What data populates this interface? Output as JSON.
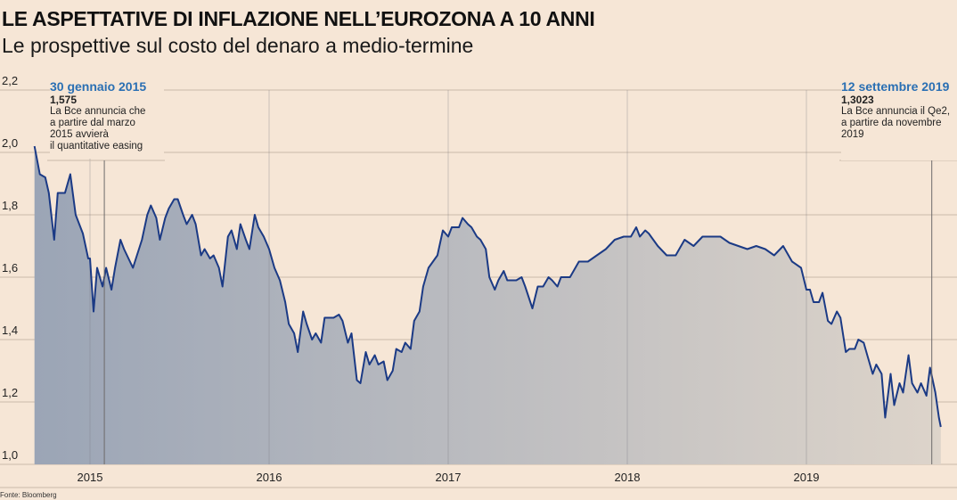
{
  "title": "LE ASPETTATIVE DI INFLAZIONE NELL’EUROZONA A 10 ANNI",
  "subtitle": "Le prospettive sul costo del denaro a medio-termine",
  "source": "Fonte: Bloomberg",
  "colors": {
    "background": "#f6e6d6",
    "line": "#1b3a85",
    "fill_left": "#9ba5b6",
    "fill_right": "#ddd4ca",
    "annotation_date": "#2a6fb3",
    "grid": "#c9b9a9"
  },
  "annotations": [
    {
      "date_label": "30 gennaio 2015",
      "value": "1,575",
      "lines": [
        "La Bce annuncia che",
        "a partire dal marzo",
        "2015 avvierà",
        "il quantitative easing"
      ],
      "x": 2015.08
    },
    {
      "date_label": "12 settembre 2019",
      "value": "1,3023",
      "lines": [
        "La Bce annuncia il Qe2,",
        "a partire da novembre",
        "2019"
      ],
      "x": 2019.7
    }
  ],
  "chart_data": {
    "type": "area",
    "title": "LE ASPETTATIVE DI INFLAZIONE NELL’EUROZONA A 10 ANNI",
    "xlabel": "",
    "ylabel": "",
    "xlim": [
      2014.69,
      2019.75
    ],
    "ylim": [
      1.0,
      2.2
    ],
    "grid": true,
    "x_ticks": [
      "2015",
      "2016",
      "2017",
      "2018",
      "2019"
    ],
    "y_ticks": [
      "1,0",
      "1,2",
      "1,4",
      "1,6",
      "1,8",
      "2,0",
      "2,2"
    ],
    "x": [
      2014.69,
      2014.72,
      2014.75,
      2014.77,
      2014.8,
      2014.82,
      2014.86,
      2014.89,
      2014.92,
      2014.96,
      2014.99,
      2015.0,
      2015.02,
      2015.04,
      2015.07,
      2015.09,
      2015.12,
      2015.14,
      2015.17,
      2015.19,
      2015.24,
      2015.29,
      2015.32,
      2015.34,
      2015.37,
      2015.39,
      2015.42,
      2015.44,
      2015.47,
      2015.49,
      2015.52,
      2015.54,
      2015.57,
      2015.59,
      2015.62,
      2015.64,
      2015.67,
      2015.69,
      2015.72,
      2015.74,
      2015.77,
      2015.79,
      2015.82,
      2015.84,
      2015.87,
      2015.89,
      2015.92,
      2015.94,
      2015.97,
      2016.0,
      2016.03,
      2016.06,
      2016.09,
      2016.11,
      2016.14,
      2016.16,
      2016.19,
      2016.21,
      2016.24,
      2016.26,
      2016.29,
      2016.31,
      2016.34,
      2016.36,
      2016.39,
      2016.41,
      2016.44,
      2016.46,
      2016.49,
      2016.51,
      2016.54,
      2016.56,
      2016.59,
      2016.61,
      2016.64,
      2016.66,
      2016.69,
      2016.71,
      2016.74,
      2016.76,
      2016.79,
      2016.81,
      2016.84,
      2016.86,
      2016.89,
      2016.94,
      2016.97,
      2017.0,
      2017.02,
      2017.06,
      2017.08,
      2017.11,
      2017.13,
      2017.16,
      2017.18,
      2017.21,
      2017.23,
      2017.26,
      2017.28,
      2017.31,
      2017.33,
      2017.38,
      2017.41,
      2017.43,
      2017.47,
      2017.5,
      2017.53,
      2017.56,
      2017.58,
      2017.61,
      2017.63,
      2017.68,
      2017.73,
      2017.78,
      2017.83,
      2017.88,
      2017.93,
      2017.98,
      2018.02,
      2018.05,
      2018.07,
      2018.1,
      2018.12,
      2018.17,
      2018.22,
      2018.27,
      2018.32,
      2018.37,
      2018.42,
      2018.47,
      2018.52,
      2018.57,
      2018.62,
      2018.67,
      2018.72,
      2018.77,
      2018.82,
      2018.87,
      2018.92,
      2018.97,
      2019.0,
      2019.02,
      2019.04,
      2019.07,
      2019.09,
      2019.12,
      2019.14,
      2019.17,
      2019.19,
      2019.22,
      2019.24,
      2019.27,
      2019.29,
      2019.32,
      2019.34,
      2019.37,
      2019.39,
      2019.42,
      2019.44,
      2019.47,
      2019.49,
      2019.52,
      2019.54,
      2019.57,
      2019.59,
      2019.62,
      2019.64,
      2019.67,
      2019.69,
      2019.72,
      2019.74,
      2019.75
    ],
    "series": [
      {
        "values": [
          2.02,
          1.93,
          1.92,
          1.87,
          1.72,
          1.87,
          1.87,
          1.93,
          1.8,
          1.74,
          1.66,
          1.66,
          1.49,
          1.63,
          1.57,
          1.63,
          1.56,
          1.63,
          1.72,
          1.69,
          1.63,
          1.72,
          1.8,
          1.83,
          1.79,
          1.72,
          1.79,
          1.82,
          1.85,
          1.85,
          1.8,
          1.77,
          1.8,
          1.77,
          1.67,
          1.69,
          1.66,
          1.67,
          1.63,
          1.57,
          1.73,
          1.75,
          1.69,
          1.77,
          1.72,
          1.69,
          1.8,
          1.76,
          1.73,
          1.69,
          1.63,
          1.59,
          1.52,
          1.45,
          1.42,
          1.36,
          1.49,
          1.45,
          1.4,
          1.42,
          1.39,
          1.47,
          1.47,
          1.47,
          1.48,
          1.46,
          1.39,
          1.42,
          1.27,
          1.26,
          1.36,
          1.32,
          1.35,
          1.32,
          1.33,
          1.27,
          1.3,
          1.37,
          1.36,
          1.39,
          1.37,
          1.46,
          1.49,
          1.57,
          1.63,
          1.67,
          1.75,
          1.73,
          1.76,
          1.76,
          1.79,
          1.77,
          1.76,
          1.73,
          1.72,
          1.69,
          1.6,
          1.56,
          1.59,
          1.62,
          1.59,
          1.59,
          1.6,
          1.57,
          1.5,
          1.57,
          1.57,
          1.6,
          1.59,
          1.57,
          1.6,
          1.6,
          1.65,
          1.65,
          1.67,
          1.69,
          1.72,
          1.73,
          1.73,
          1.76,
          1.73,
          1.75,
          1.74,
          1.7,
          1.67,
          1.67,
          1.72,
          1.7,
          1.73,
          1.73,
          1.73,
          1.71,
          1.7,
          1.69,
          1.7,
          1.69,
          1.67,
          1.7,
          1.65,
          1.63,
          1.56,
          1.56,
          1.52,
          1.52,
          1.55,
          1.46,
          1.45,
          1.49,
          1.47,
          1.36,
          1.37,
          1.37,
          1.4,
          1.39,
          1.35,
          1.29,
          1.32,
          1.29,
          1.15,
          1.29,
          1.19,
          1.26,
          1.23,
          1.35,
          1.26,
          1.23,
          1.26,
          1.22,
          1.31,
          1.23,
          1.15,
          1.12
        ]
      }
    ]
  }
}
